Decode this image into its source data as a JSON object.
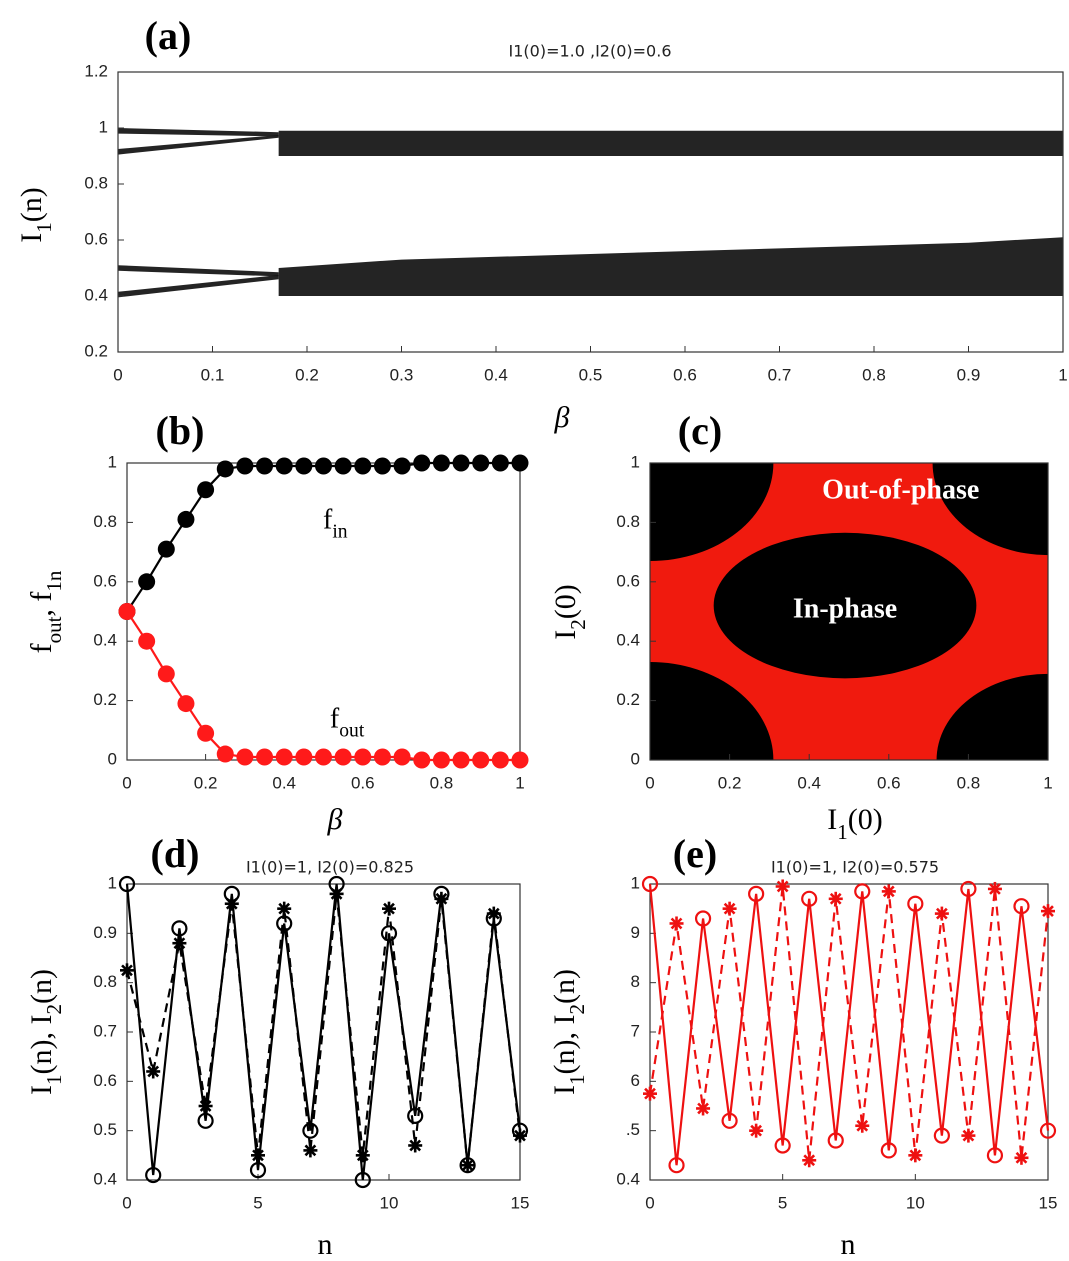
{
  "chart_data": [
    {
      "type": "area",
      "panel_label": "(a)",
      "title": "I1(0)=1.0 ,I2(0)=0.6",
      "ylabel": [
        {
          "t": "I"
        },
        {
          "s": "1"
        },
        {
          "t": "(n)"
        }
      ],
      "xlabel": "β",
      "xlim": [
        0,
        1
      ],
      "ylim": [
        0.2,
        1.2
      ],
      "xticks": [
        0,
        0.1,
        0.2,
        0.3,
        0.4,
        0.5,
        0.6,
        0.7,
        0.8,
        0.9,
        1
      ],
      "yticks": [
        0.2,
        0.4,
        0.6,
        0.8,
        1,
        1.2
      ],
      "series": [
        {
          "color": "#111111",
          "x": [
            0,
            0.17
          ],
          "low": [
            0.98,
            0.97
          ],
          "high": [
            1.0,
            0.985
          ]
        },
        {
          "color": "#111111",
          "x": [
            0,
            0.17
          ],
          "low": [
            0.905,
            0.965
          ],
          "high": [
            0.925,
            0.975
          ]
        },
        {
          "color": "#111111",
          "x": [
            0.17,
            1
          ],
          "low": [
            0.9,
            0.9
          ],
          "high": [
            0.99,
            0.99
          ]
        },
        {
          "color": "#111111",
          "x": [
            0,
            0.17
          ],
          "low": [
            0.49,
            0.47
          ],
          "high": [
            0.51,
            0.485
          ]
        },
        {
          "color": "#111111",
          "x": [
            0,
            0.17
          ],
          "low": [
            0.395,
            0.46
          ],
          "high": [
            0.415,
            0.475
          ]
        },
        {
          "color": "#111111",
          "x": [
            0.17,
            0.3,
            0.5,
            0.7,
            0.9,
            1
          ],
          "low": [
            0.4,
            0.4,
            0.4,
            0.4,
            0.4,
            0.4
          ],
          "high": [
            0.5,
            0.53,
            0.55,
            0.57,
            0.59,
            0.61
          ]
        }
      ]
    },
    {
      "type": "line",
      "panel_label": "(b)",
      "ylabel": [
        {
          "t": "f"
        },
        {
          "s": "out"
        },
        {
          "t": ", f"
        },
        {
          "s": "1n"
        }
      ],
      "xlabel": "β",
      "xlim": [
        0,
        1
      ],
      "ylim": [
        0,
        1
      ],
      "xticks": [
        0,
        0.2,
        0.4,
        0.6,
        0.8,
        1
      ],
      "yticks": [
        0,
        0.2,
        0.4,
        0.6,
        0.8,
        1
      ],
      "x": [
        0,
        0.05,
        0.1,
        0.15,
        0.2,
        0.25,
        0.3,
        0.35,
        0.4,
        0.45,
        0.5,
        0.55,
        0.6,
        0.65,
        0.7,
        0.75,
        0.8,
        0.85,
        0.9,
        0.95,
        1
      ],
      "series": [
        {
          "color": "#000000",
          "linestyle": "solid",
          "marker": "filled",
          "values": [
            0.5,
            0.6,
            0.71,
            0.81,
            0.91,
            0.98,
            0.99,
            0.99,
            0.99,
            0.99,
            0.99,
            0.99,
            0.99,
            0.99,
            0.99,
            1,
            1,
            1,
            1,
            1,
            1
          ]
        },
        {
          "color": "#ff1a1a",
          "linestyle": "solid",
          "marker": "filled",
          "values": [
            0.5,
            0.4,
            0.29,
            0.19,
            0.09,
            0.02,
            0.01,
            0.01,
            0.01,
            0.01,
            0.01,
            0.01,
            0.01,
            0.01,
            0.01,
            0,
            0,
            0,
            0,
            0,
            0
          ]
        }
      ],
      "annotations": [
        {
          "parts": [
            {
              "t": "f"
            },
            {
              "s": "in"
            }
          ],
          "x": 0.53,
          "y": 0.8,
          "color": "#000000"
        },
        {
          "parts": [
            {
              "t": "f"
            },
            {
              "s": "out"
            }
          ],
          "x": 0.56,
          "y": 0.13,
          "color": "#000000"
        }
      ]
    },
    {
      "type": "region",
      "panel_label": "(c)",
      "ylabel": [
        {
          "t": "I"
        },
        {
          "s": "2"
        },
        {
          "t": "(0)"
        }
      ],
      "xlabel": [
        {
          "t": "I"
        },
        {
          "s": "1"
        },
        {
          "t": "(0)"
        }
      ],
      "xlim": [
        0,
        1
      ],
      "ylim": [
        0,
        1
      ],
      "xticks": [
        0,
        0.2,
        0.4,
        0.6,
        0.8,
        1
      ],
      "yticks": [
        0,
        0.2,
        0.4,
        0.6,
        0.8,
        1
      ],
      "background": "#f01a0e",
      "regions": [
        {
          "color": "#000000",
          "cx": 0.49,
          "cy": 0.52,
          "rx": 0.33,
          "ry": 0.245
        },
        {
          "color": "#000000",
          "cx": 0,
          "cy": 0,
          "rx": 0.31,
          "ry": 0.33
        },
        {
          "color": "#000000",
          "cx": 1,
          "cy": 0,
          "rx": 0.28,
          "ry": 0.29
        },
        {
          "color": "#000000",
          "cx": 0,
          "cy": 1,
          "rx": 0.31,
          "ry": 0.33
        },
        {
          "color": "#000000",
          "cx": 1,
          "cy": 1,
          "rx": 0.29,
          "ry": 0.31
        }
      ],
      "annotations": [
        {
          "parts": [
            {
              "t": "Out-of-phase"
            }
          ],
          "x": 0.63,
          "y": 0.9,
          "color": "#ffffff"
        },
        {
          "parts": [
            {
              "t": "In-phase"
            }
          ],
          "x": 0.49,
          "y": 0.5,
          "color": "#ffffff"
        }
      ]
    },
    {
      "type": "line",
      "panel_label": "(d)",
      "title": "I1(0)=1, I2(0)=0.825",
      "ylabel": [
        {
          "t": "I"
        },
        {
          "s": "1"
        },
        {
          "t": "(n), I"
        },
        {
          "s": "2"
        },
        {
          "t": "(n)"
        }
      ],
      "xlabel": "n",
      "xlim": [
        0,
        15
      ],
      "ylim": [
        0.4,
        1
      ],
      "xticks": [
        0,
        5,
        10,
        15
      ],
      "yticks": [
        0.4,
        0.5,
        0.6,
        0.7,
        0.8,
        0.9,
        1
      ],
      "x": [
        0,
        1,
        2,
        3,
        4,
        5,
        6,
        7,
        8,
        9,
        10,
        11,
        12,
        13,
        14,
        15
      ],
      "series": [
        {
          "color": "#000000",
          "linestyle": "solid",
          "marker": "circle",
          "values": [
            1.0,
            0.41,
            0.91,
            0.52,
            0.98,
            0.42,
            0.92,
            0.5,
            1.0,
            0.4,
            0.9,
            0.53,
            0.98,
            0.43,
            0.93,
            0.5
          ]
        },
        {
          "color": "#000000",
          "linestyle": "dashed",
          "marker": "star",
          "values": [
            0.825,
            0.62,
            0.88,
            0.55,
            0.96,
            0.45,
            0.95,
            0.46,
            0.98,
            0.45,
            0.95,
            0.47,
            0.97,
            0.43,
            0.94,
            0.49
          ]
        }
      ]
    },
    {
      "type": "line",
      "panel_label": "(e)",
      "title": "I1(0)=1, I2(0)=0.575",
      "ylabel": [
        {
          "t": "I"
        },
        {
          "s": "1"
        },
        {
          "t": "(n), I"
        },
        {
          "s": "2"
        },
        {
          "t": "(n)"
        }
      ],
      "xlabel": "n",
      "xlim": [
        0,
        15
      ],
      "ylim": [
        0.4,
        1
      ],
      "xticks": [
        0,
        5,
        10,
        15
      ],
      "yticks": [
        0.4,
        {
          "value": 0.5,
          "label": ".5"
        },
        {
          "value": 0.6,
          "label": "6"
        },
        {
          "value": 0.7,
          "label": "7"
        },
        {
          "value": 0.8,
          "label": "8"
        },
        {
          "value": 0.9,
          "label": "9"
        },
        1
      ],
      "x": [
        0,
        1,
        2,
        3,
        4,
        5,
        6,
        7,
        8,
        9,
        10,
        11,
        12,
        13,
        14,
        15
      ],
      "series": [
        {
          "color": "#ee1111",
          "linestyle": "solid",
          "marker": "circle",
          "values": [
            1.0,
            0.43,
            0.93,
            0.52,
            0.98,
            0.47,
            0.97,
            0.48,
            0.985,
            0.46,
            0.96,
            0.49,
            0.99,
            0.45,
            0.955,
            0.5
          ]
        },
        {
          "color": "#ee1111",
          "linestyle": "dashed",
          "marker": "star",
          "values": [
            0.575,
            0.92,
            0.545,
            0.95,
            0.5,
            0.995,
            0.44,
            0.97,
            0.51,
            0.985,
            0.45,
            0.94,
            0.49,
            0.99,
            0.445,
            0.945
          ]
        }
      ]
    }
  ]
}
